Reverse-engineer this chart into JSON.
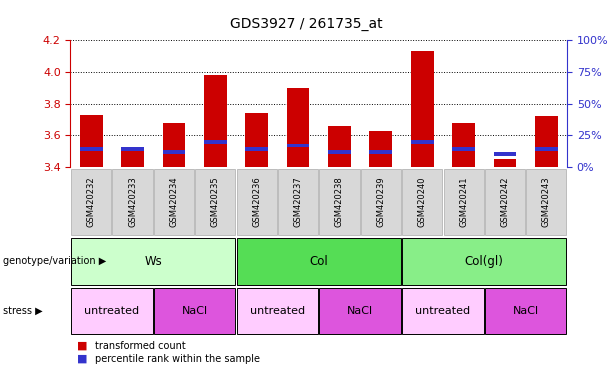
{
  "title": "GDS3927 / 261735_at",
  "samples": [
    "GSM420232",
    "GSM420233",
    "GSM420234",
    "GSM420235",
    "GSM420236",
    "GSM420237",
    "GSM420238",
    "GSM420239",
    "GSM420240",
    "GSM420241",
    "GSM420242",
    "GSM420243"
  ],
  "bar_values": [
    3.73,
    3.52,
    3.68,
    3.98,
    3.74,
    3.9,
    3.66,
    3.63,
    4.13,
    3.68,
    3.45,
    3.72
  ],
  "percentile_values": [
    14,
    14,
    12,
    20,
    14,
    17,
    12,
    12,
    20,
    14,
    10,
    14
  ],
  "bar_bottom": 3.4,
  "ylim_left": [
    3.4,
    4.2
  ],
  "ylim_right": [
    0,
    100
  ],
  "yticks_left": [
    3.4,
    3.6,
    3.8,
    4.0,
    4.2
  ],
  "yticks_right": [
    0,
    25,
    50,
    75,
    100
  ],
  "bar_color": "#cc0000",
  "percentile_color": "#3333cc",
  "bar_width": 0.55,
  "genotype_groups": [
    {
      "label": "Ws",
      "start": 0,
      "end": 4,
      "color": "#ccffcc"
    },
    {
      "label": "Col",
      "start": 4,
      "end": 8,
      "color": "#55dd55"
    },
    {
      "label": "Col(gl)",
      "start": 8,
      "end": 12,
      "color": "#88ee88"
    }
  ],
  "stress_groups": [
    {
      "label": "untreated",
      "start": 0,
      "end": 2,
      "color": "#ffccff"
    },
    {
      "label": "NaCl",
      "start": 2,
      "end": 4,
      "color": "#dd55dd"
    },
    {
      "label": "untreated",
      "start": 4,
      "end": 6,
      "color": "#ffccff"
    },
    {
      "label": "NaCl",
      "start": 6,
      "end": 8,
      "color": "#dd55dd"
    },
    {
      "label": "untreated",
      "start": 8,
      "end": 10,
      "color": "#ffccff"
    },
    {
      "label": "NaCl",
      "start": 10,
      "end": 12,
      "color": "#dd55dd"
    }
  ],
  "legend_red_label": "transformed count",
  "legend_blue_label": "percentile rank within the sample",
  "genotype_label": "genotype/variation",
  "stress_label": "stress",
  "bar_color_left": "#cc0000",
  "tick_color_right": "#3333cc",
  "grid_linestyle": "dotted",
  "sample_box_color": "#d8d8d8",
  "fig_bg": "#ffffff"
}
